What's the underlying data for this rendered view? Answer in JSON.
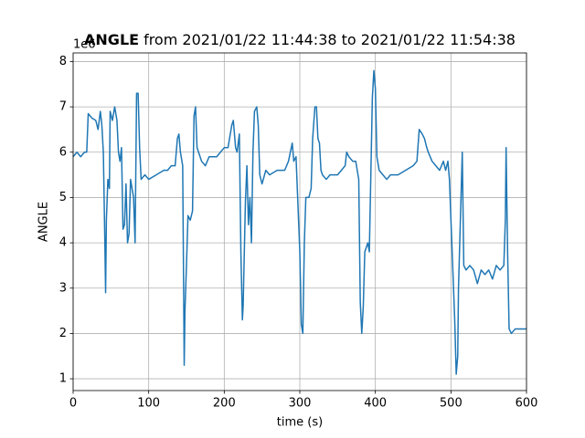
{
  "chart_data": {
    "type": "line",
    "title_bold": "ANGLE",
    "title": "from 2021/01/22 11:44:38 to 2021/01/22 11:54:38",
    "y_offset_label": "1e6",
    "xlabel": "time (s)",
    "ylabel": "ANGLE",
    "xlim": [
      0,
      600
    ],
    "ylim": [
      0.74,
      8.19
    ],
    "xticks": [
      0,
      100,
      200,
      300,
      400,
      500,
      600
    ],
    "yticks": [
      1,
      2,
      3,
      4,
      5,
      6,
      7,
      8
    ],
    "grid": true,
    "series": [
      {
        "color": "#1f77b4",
        "x": [
          0,
          5,
          10,
          15,
          18,
          20,
          25,
          30,
          33,
          36,
          38,
          40,
          42,
          43,
          44,
          46,
          48,
          49,
          52,
          55,
          58,
          60,
          62,
          64,
          66,
          68,
          70,
          72,
          74,
          76,
          80,
          82,
          84,
          86,
          88,
          90,
          95,
          100,
          110,
          120,
          125,
          130,
          135,
          138,
          140,
          142,
          145,
          147,
          148,
          150,
          152,
          155,
          158,
          160,
          162,
          164,
          166,
          170,
          175,
          180,
          190,
          195,
          200,
          205,
          210,
          212,
          215,
          217,
          220,
          222,
          224,
          225,
          228,
          230,
          232,
          234,
          236,
          238,
          240,
          243,
          245,
          247,
          250,
          255,
          260,
          270,
          280,
          285,
          290,
          292,
          295,
          300,
          302,
          304,
          306,
          308,
          312,
          315,
          317,
          320,
          322,
          324,
          326,
          328,
          330,
          335,
          340,
          345,
          350,
          355,
          360,
          362,
          365,
          370,
          374,
          378,
          380,
          382,
          384,
          386,
          390,
          392,
          394,
          396,
          398,
          400,
          402,
          405,
          410,
          415,
          420,
          430,
          440,
          450,
          455,
          458,
          462,
          465,
          468,
          470,
          475,
          480,
          485,
          490,
          493,
          496,
          498,
          505,
          507,
          509,
          510,
          513,
          515,
          517,
          520,
          525,
          530,
          535,
          540,
          545,
          550,
          555,
          560,
          565,
          570,
          572,
          573,
          575,
          577,
          580,
          585,
          590,
          595,
          600
        ],
        "values": [
          5.9,
          6.0,
          5.9,
          6.0,
          6.0,
          6.85,
          6.75,
          6.7,
          6.5,
          6.9,
          6.6,
          6.0,
          4.0,
          2.9,
          4.5,
          5.4,
          5.2,
          6.9,
          6.7,
          7.0,
          6.7,
          6.0,
          5.8,
          6.1,
          4.3,
          4.4,
          5.3,
          4.0,
          4.2,
          5.4,
          5.0,
          4.0,
          7.3,
          7.3,
          6.1,
          5.4,
          5.5,
          5.4,
          5.5,
          5.6,
          5.6,
          5.7,
          5.7,
          6.3,
          6.4,
          6.0,
          5.7,
          1.3,
          2.5,
          3.5,
          4.6,
          4.5,
          4.7,
          6.8,
          7.0,
          6.1,
          6.0,
          5.8,
          5.7,
          5.9,
          5.9,
          6.0,
          6.1,
          6.1,
          6.6,
          6.7,
          6.1,
          6.0,
          6.4,
          3.8,
          2.3,
          2.6,
          4.9,
          5.7,
          4.4,
          5.0,
          4.0,
          6.0,
          6.9,
          7.0,
          6.6,
          5.5,
          5.3,
          5.6,
          5.5,
          5.6,
          5.6,
          5.8,
          6.2,
          5.8,
          5.9,
          3.8,
          2.2,
          2.0,
          4.0,
          5.0,
          5.0,
          5.2,
          6.3,
          7.0,
          7.0,
          6.3,
          6.2,
          5.6,
          5.5,
          5.4,
          5.5,
          5.5,
          5.5,
          5.6,
          5.7,
          6.0,
          5.9,
          5.8,
          5.8,
          5.4,
          2.7,
          2.0,
          2.6,
          3.8,
          4.0,
          3.8,
          5.5,
          7.2,
          7.8,
          7.4,
          5.9,
          5.6,
          5.5,
          5.4,
          5.5,
          5.5,
          5.6,
          5.7,
          5.8,
          6.5,
          6.4,
          6.3,
          6.1,
          6.0,
          5.8,
          5.7,
          5.6,
          5.8,
          5.6,
          5.8,
          5.4,
          2.3,
          1.1,
          1.5,
          3.0,
          4.8,
          6.0,
          3.5,
          3.4,
          3.5,
          3.4,
          3.1,
          3.4,
          3.3,
          3.4,
          3.2,
          3.5,
          3.4,
          3.5,
          4.5,
          6.1,
          3.8,
          2.1,
          2.0,
          2.1,
          2.1,
          2.1,
          2.1
        ]
      }
    ]
  }
}
